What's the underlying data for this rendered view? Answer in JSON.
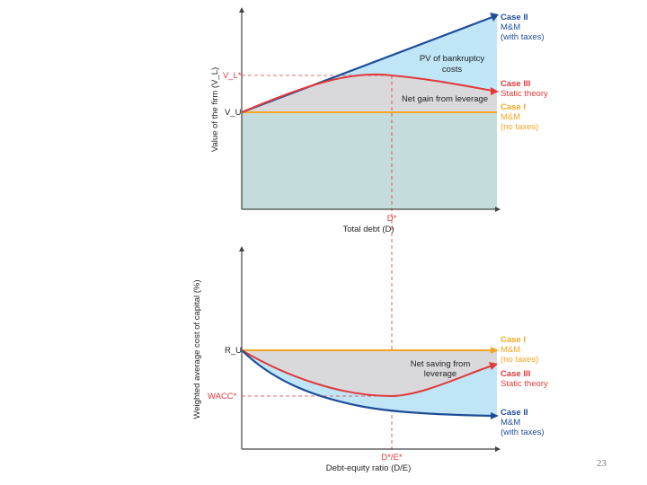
{
  "top_chart": {
    "y_axis_title": "Value of the firm (V_L)",
    "x_axis_title": "Total debt (D)",
    "vl_star_label": "V_L*",
    "vu_label": "V_U",
    "d_star_label": "D*",
    "annotations": {
      "pv_bankruptcy_line1": "PV of bankruptcy",
      "pv_bankruptcy_line2": "costs",
      "net_gain": "Net gain from leverage"
    },
    "cases": {
      "case2": {
        "title": "Case II",
        "line1": "M&M",
        "line2": "(with taxes)"
      },
      "case3": {
        "title": "Case III",
        "line1": "Static theory"
      },
      "case1": {
        "title": "Case I",
        "line1": "M&M",
        "line2": "(no taxes)"
      }
    }
  },
  "bottom_chart": {
    "y_axis_title": "Weighted average cost of capital (%)",
    "x_axis_title": "Debt-equity ratio (D/E)",
    "ru_label": "R_U",
    "wacc_star_label": "WACC*",
    "de_star_label": "D*/E*",
    "annotations": {
      "net_saving_line1": "Net saving from",
      "net_saving_line2": "leverage"
    },
    "cases": {
      "case1": {
        "title": "Case I",
        "line1": "M&M",
        "line2": "(no taxes)"
      },
      "case3": {
        "title": "Case III",
        "line1": "Static theory"
      },
      "case2": {
        "title": "Case II",
        "line1": "M&M",
        "line2": "(with taxes)"
      }
    }
  },
  "page_number": "23",
  "colors": {
    "case1_orange": "#f5a623",
    "case2_blue": "#1f4e99",
    "case3_red": "#e03a3a",
    "light_blue_fill": "#bfe5f7",
    "gray_fill": "#d9d9dc",
    "teal_fill": "#c5dcdc"
  }
}
